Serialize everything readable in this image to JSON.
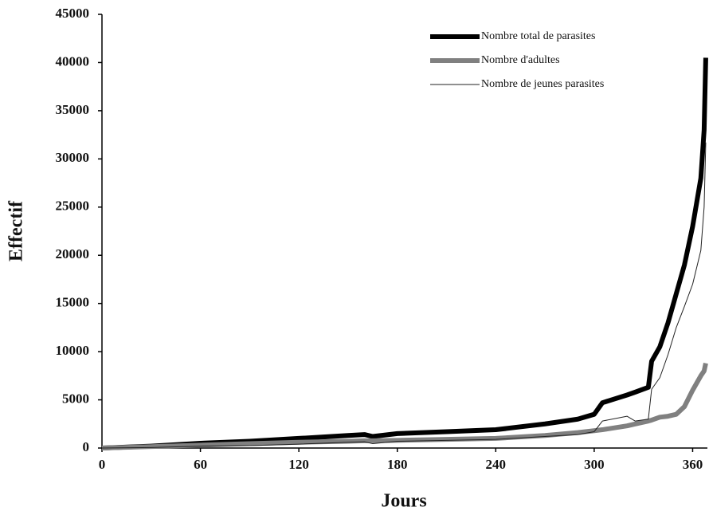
{
  "chart_data": {
    "type": "line",
    "x_label": "Jours",
    "y_label": "Effectif",
    "x": [
      0,
      30,
      60,
      90,
      120,
      150,
      160,
      165,
      180,
      210,
      240,
      270,
      290,
      300,
      305,
      320,
      325,
      333,
      335,
      340,
      345,
      350,
      355,
      360,
      365,
      367,
      368
    ],
    "series": [
      {
        "name": "Nombre total de parasites",
        "color": "#000000",
        "width": 6,
        "values": [
          0,
          200,
          500,
          700,
          1000,
          1300,
          1400,
          1200,
          1500,
          1700,
          1900,
          2500,
          3000,
          3500,
          4700,
          5500,
          5800,
          6300,
          9000,
          10500,
          13000,
          16000,
          19000,
          23000,
          28000,
          33000,
          40500
        ]
      },
      {
        "name": "Nombre d'adultes",
        "color": "#808080",
        "width": 6,
        "values": [
          0,
          150,
          300,
          450,
          600,
          700,
          750,
          750,
          800,
          900,
          1000,
          1300,
          1600,
          1800,
          1900,
          2300,
          2500,
          2800,
          2900,
          3200,
          3300,
          3500,
          4300,
          6000,
          7500,
          8000,
          8800
        ]
      },
      {
        "name": "Nombre de jeunes parasites",
        "color": "#222222",
        "width": 1,
        "values": [
          0,
          50,
          200,
          250,
          400,
          600,
          650,
          450,
          700,
          800,
          900,
          1200,
          1400,
          1700,
          2800,
          3300,
          2800,
          3000,
          6100,
          7300,
          9700,
          12500,
          14700,
          17000,
          20500,
          25000,
          31700
        ]
      }
    ],
    "xlim": [
      0,
      369
    ],
    "xticks": [
      0,
      60,
      120,
      180,
      240,
      300,
      360
    ],
    "ylim": [
      0,
      45000
    ],
    "yticks": [
      0,
      5000,
      10000,
      15000,
      20000,
      25000,
      30000,
      35000,
      40000,
      45000
    ],
    "grid": false,
    "legend": "top-right"
  }
}
